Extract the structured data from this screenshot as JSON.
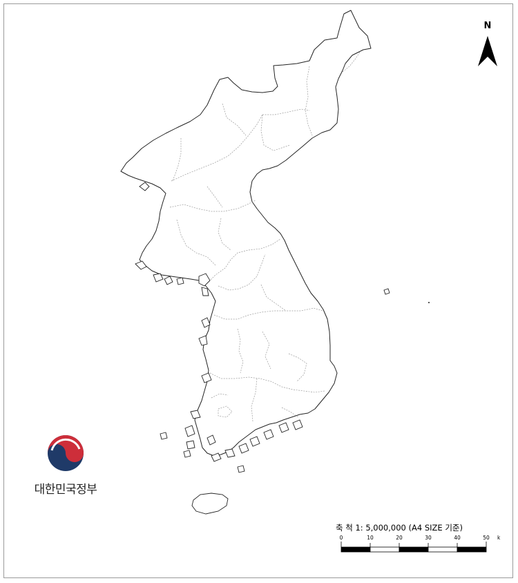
{
  "north_arrow": {
    "label": "N"
  },
  "emblem": {
    "org_name": "대한민국정부",
    "colors": {
      "red": "#cd2e3a",
      "blue": "#1f3a68"
    }
  },
  "scale": {
    "title": "축 척 1: 5,000,000 (A4 SIZE 기준)",
    "ticks": [
      "0",
      "10",
      "20",
      "30",
      "40",
      "50"
    ],
    "unit": "km"
  },
  "colors": {
    "coast": "#222222",
    "boundary": "#9a9a9a",
    "frame": "#9a9a9a"
  }
}
